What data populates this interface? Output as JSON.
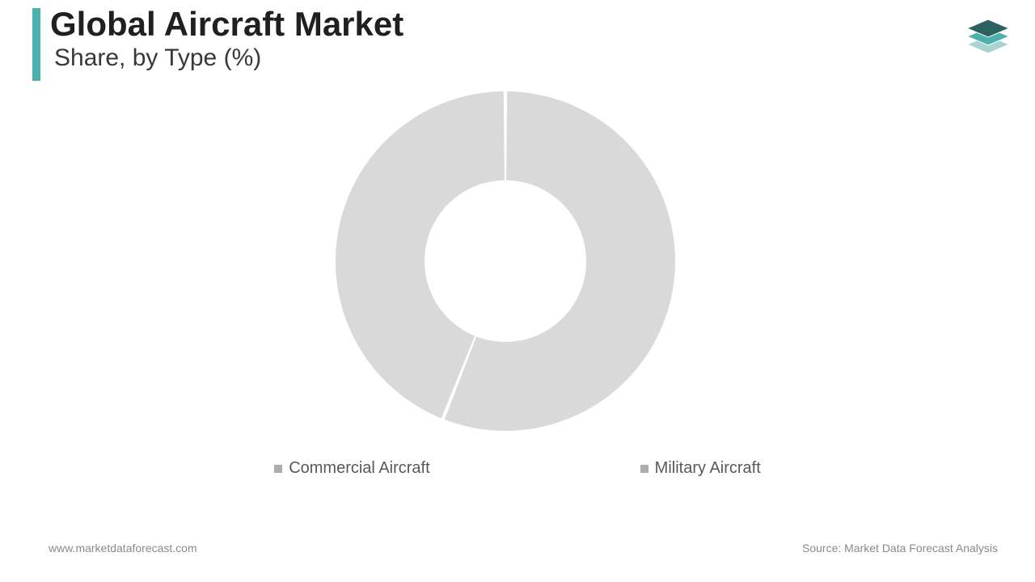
{
  "header": {
    "title": "Global Aircraft Market",
    "subtitle": "Share, by Type (%)",
    "bar_color": "#4eb0ac",
    "title_color": "#202020",
    "subtitle_color": "#383838",
    "title_fontsize": 42,
    "subtitle_fontsize": 30
  },
  "logo": {
    "top_color": "#2d6160",
    "middle_color": "#4eb0ac",
    "bottom_color": "#a9d4d2"
  },
  "chart": {
    "type": "donut",
    "outer_radius": 210,
    "inner_radius": 100,
    "slice_gap_deg": 1.2,
    "background_color": "#ffffff",
    "slice_color": "#d9d9d9",
    "slices": [
      {
        "label": "Commercial Aircraft",
        "value": 56
      },
      {
        "label": "Military Aircraft",
        "value": 44
      }
    ]
  },
  "legend": {
    "bullet_color": "#acacac",
    "text_color": "#585858",
    "fontsize": 20
  },
  "footer": {
    "left": "www.marketdataforecast.com",
    "right": "Source: Market Data Forecast Analysis",
    "color": "#8a8a8a",
    "fontsize": 14
  }
}
